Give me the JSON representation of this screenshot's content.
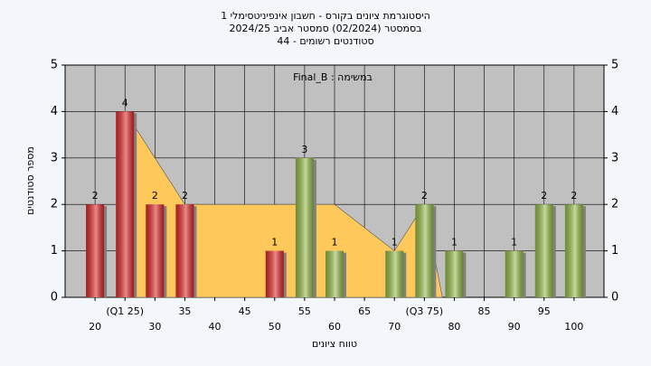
{
  "chart_data": {
    "type": "bar",
    "title_lines": [
      "היסטוגרמת ציונים בקורס - חשבון אינפיניטסימלי 1",
      "בסמסטר  (02/2024)  סמסטר אביב 2024/25",
      "סטודנטים רשומים - 44"
    ],
    "annotation": "Final_B : במשימה",
    "xlabel": "טווח ציונים",
    "ylabel": "מספר סטודנטים",
    "x": [
      20,
      25,
      30,
      35,
      50,
      55,
      60,
      70,
      75,
      80,
      90,
      95,
      100
    ],
    "values": [
      2,
      4,
      2,
      2,
      1,
      3,
      1,
      1,
      2,
      1,
      1,
      2,
      2
    ],
    "colors": [
      "#e02828",
      "#e02828",
      "#e02828",
      "#e02828",
      "#e02828",
      "#96bc48",
      "#96bc48",
      "#96bc48",
      "#96bc48",
      "#96bc48",
      "#96bc48",
      "#96bc48",
      "#96bc48"
    ],
    "area": {
      "x": [
        25,
        25,
        35,
        60,
        70,
        75,
        78
      ],
      "values": [
        0,
        4,
        2,
        2,
        1,
        2,
        0
      ],
      "color": "#ffc85a"
    },
    "xlim": [
      15,
      105
    ],
    "xticks": [
      20,
      {
        "value": 25,
        "label": "(Q1 25)"
      },
      30,
      35,
      40,
      45,
      50,
      55,
      60,
      65,
      70,
      {
        "value": 75,
        "label": "(Q3 75)"
      },
      80,
      85,
      90,
      95,
      100
    ],
    "ylim": [
      0,
      5
    ],
    "yticks": [
      0,
      1,
      2,
      3,
      4,
      5
    ],
    "grid": true,
    "plot_background": "#c0c0c0"
  }
}
